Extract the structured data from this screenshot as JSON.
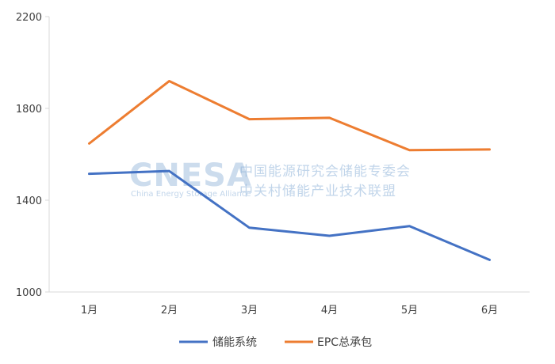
{
  "watermark": {
    "logo_text": "CNESA",
    "logo_subtitle": "China Energy Storage Alliance",
    "line1": "中国能源研究会储能专委会",
    "line2": "中关村储能产业技术联盟"
  },
  "colors": {
    "series_1": "#4472c4",
    "series_2": "#ed7d31",
    "axis": "#d9d9d9",
    "text": "#404040"
  },
  "chart_data": {
    "type": "line",
    "title": "",
    "xlabel": "",
    "ylabel": "",
    "categories": [
      "1月",
      "2月",
      "3月",
      "4月",
      "5月",
      "6月"
    ],
    "ylim": [
      1000,
      2200
    ],
    "yticks": [
      1000,
      1400,
      1800,
      2200
    ],
    "ytick_labels": [
      "1000",
      "1400",
      "1800",
      "2200"
    ],
    "grid": false,
    "legend_position": "bottom",
    "series": [
      {
        "name": "储能系统",
        "values": [
          1515,
          1527,
          1280,
          1245,
          1287,
          1140
        ]
      },
      {
        "name": "EPC总承包",
        "values": [
          1647,
          1919,
          1753,
          1759,
          1618,
          1621
        ]
      }
    ]
  }
}
